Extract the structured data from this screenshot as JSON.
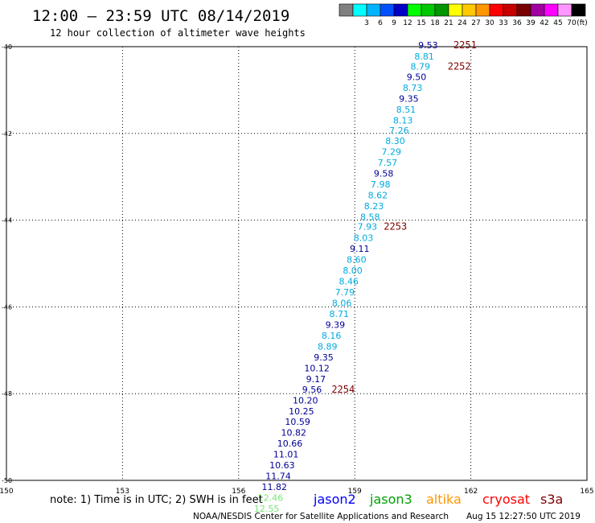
{
  "header": {
    "title": "12:00 – 23:59 UTC 08/14/2019",
    "subtitle": "12 hour collection of altimeter wave heights"
  },
  "colorbar": {
    "unit": "(ft)",
    "swatches": [
      {
        "color": "#808080",
        "label": ""
      },
      {
        "color": "#00ffff",
        "label": "3"
      },
      {
        "color": "#00b4ff",
        "label": "6"
      },
      {
        "color": "#0050ff",
        "label": "9"
      },
      {
        "color": "#0000c8",
        "label": "12"
      },
      {
        "color": "#00ff00",
        "label": "15"
      },
      {
        "color": "#00c800",
        "label": "18"
      },
      {
        "color": "#009600",
        "label": "21"
      },
      {
        "color": "#ffff00",
        "label": "24"
      },
      {
        "color": "#ffc800",
        "label": "27"
      },
      {
        "color": "#ff9600",
        "label": "30"
      },
      {
        "color": "#ff0000",
        "label": "33"
      },
      {
        "color": "#c80000",
        "label": "36"
      },
      {
        "color": "#780000",
        "label": "39"
      },
      {
        "color": "#a000a0",
        "label": "42"
      },
      {
        "color": "#ff00ff",
        "label": "45"
      },
      {
        "color": "#ff96ff",
        "label": "70"
      },
      {
        "color": "#000000",
        "label": ""
      }
    ]
  },
  "footer": {
    "note": "note: 1) Time is in UTC; 2) SWH is in feet",
    "credit": "NOAA/NESDIS Center for Satellite Applications and Research",
    "timestamp": "Aug 15 12:27:50 UTC 2019",
    "satellites": [
      {
        "name": "jason2",
        "color": "#0000ff"
      },
      {
        "name": "jason3",
        "color": "#00a000"
      },
      {
        "name": "altika",
        "color": "#ff9600"
      },
      {
        "name": "cryosat",
        "color": "#ff0000"
      },
      {
        "name": "s3a",
        "color": "#800000"
      }
    ]
  },
  "colors": {
    "dark_blue": "#000096",
    "light_blue": "#00aadd",
    "light_green": "#78e678",
    "time_label": "#800000"
  },
  "chart_data": {
    "type": "scatter",
    "xlim": [
      150,
      165
    ],
    "ylim": [
      -50,
      -40
    ],
    "x_ticks": [
      "150",
      "153",
      "156",
      "159",
      "162",
      "165"
    ],
    "y_ticks": [
      "-40",
      "-42",
      "-44",
      "-46",
      "-48",
      "-50"
    ],
    "grid": true,
    "points": [
      {
        "x": 161.15,
        "y": -39.96,
        "label": "9.53",
        "color": "dark_blue"
      },
      {
        "x": 161.05,
        "y": -40.22,
        "label": "8.81",
        "color": "light_blue"
      },
      {
        "x": 160.95,
        "y": -40.45,
        "label": "8.79",
        "color": "light_blue"
      },
      {
        "x": 160.85,
        "y": -40.7,
        "label": "9.50",
        "color": "dark_blue"
      },
      {
        "x": 160.75,
        "y": -40.95,
        "label": "8.73",
        "color": "light_blue"
      },
      {
        "x": 160.65,
        "y": -41.2,
        "label": "9.35",
        "color": "dark_blue"
      },
      {
        "x": 160.58,
        "y": -41.45,
        "label": "8.51",
        "color": "light_blue"
      },
      {
        "x": 160.5,
        "y": -41.7,
        "label": "8.13",
        "color": "light_blue"
      },
      {
        "x": 160.4,
        "y": -41.93,
        "label": "7.26",
        "color": "light_blue"
      },
      {
        "x": 160.3,
        "y": -42.17,
        "label": "8.30",
        "color": "light_blue"
      },
      {
        "x": 160.2,
        "y": -42.42,
        "label": "7.29",
        "color": "light_blue"
      },
      {
        "x": 160.1,
        "y": -42.67,
        "label": "7.57",
        "color": "light_blue"
      },
      {
        "x": 160.0,
        "y": -42.92,
        "label": "9.58",
        "color": "dark_blue"
      },
      {
        "x": 159.92,
        "y": -43.17,
        "label": "7.98",
        "color": "light_blue"
      },
      {
        "x": 159.85,
        "y": -43.42,
        "label": "8.62",
        "color": "light_blue"
      },
      {
        "x": 159.75,
        "y": -43.67,
        "label": "8.23",
        "color": "light_blue"
      },
      {
        "x": 159.65,
        "y": -43.92,
        "label": "8.58",
        "color": "light_blue"
      },
      {
        "x": 159.58,
        "y": -44.15,
        "label": "7.93",
        "color": "light_blue"
      },
      {
        "x": 159.48,
        "y": -44.41,
        "label": "8.03",
        "color": "light_blue"
      },
      {
        "x": 159.38,
        "y": -44.66,
        "label": "9.11",
        "color": "dark_blue"
      },
      {
        "x": 159.3,
        "y": -44.91,
        "label": "8.60",
        "color": "light_blue"
      },
      {
        "x": 159.2,
        "y": -45.16,
        "label": "8.00",
        "color": "light_blue"
      },
      {
        "x": 159.1,
        "y": -45.41,
        "label": "8.46",
        "color": "light_blue"
      },
      {
        "x": 159.0,
        "y": -45.66,
        "label": "7.79",
        "color": "light_blue"
      },
      {
        "x": 158.92,
        "y": -45.91,
        "label": "8.06",
        "color": "light_blue"
      },
      {
        "x": 158.85,
        "y": -46.16,
        "label": "8.71",
        "color": "light_blue"
      },
      {
        "x": 158.75,
        "y": -46.41,
        "label": "9.39",
        "color": "dark_blue"
      },
      {
        "x": 158.65,
        "y": -46.66,
        "label": "8.16",
        "color": "light_blue"
      },
      {
        "x": 158.55,
        "y": -46.91,
        "label": "8.89",
        "color": "light_blue"
      },
      {
        "x": 158.45,
        "y": -47.16,
        "label": "9.35",
        "color": "dark_blue"
      },
      {
        "x": 158.35,
        "y": -47.41,
        "label": "10.12",
        "color": "dark_blue"
      },
      {
        "x": 158.25,
        "y": -47.66,
        "label": "9.17",
        "color": "dark_blue"
      },
      {
        "x": 158.15,
        "y": -47.9,
        "label": "9.56",
        "color": "dark_blue"
      },
      {
        "x": 158.05,
        "y": -48.15,
        "label": "10.20",
        "color": "dark_blue"
      },
      {
        "x": 157.95,
        "y": -48.4,
        "label": "10.25",
        "color": "dark_blue"
      },
      {
        "x": 157.85,
        "y": -48.65,
        "label": "10.59",
        "color": "dark_blue"
      },
      {
        "x": 157.75,
        "y": -48.9,
        "label": "10.82",
        "color": "dark_blue"
      },
      {
        "x": 157.65,
        "y": -49.15,
        "label": "10.66",
        "color": "dark_blue"
      },
      {
        "x": 157.55,
        "y": -49.4,
        "label": "11.01",
        "color": "dark_blue"
      },
      {
        "x": 157.45,
        "y": -49.65,
        "label": "10.63",
        "color": "dark_blue"
      },
      {
        "x": 157.35,
        "y": -49.9,
        "label": "11.74",
        "color": "dark_blue"
      },
      {
        "x": 157.25,
        "y": -50.15,
        "label": "11.82",
        "color": "dark_blue"
      },
      {
        "x": 157.15,
        "y": -50.4,
        "label": "12.46",
        "color": "light_green"
      },
      {
        "x": 157.05,
        "y": -50.65,
        "label": "12.55",
        "color": "light_green"
      }
    ],
    "time_annotations": [
      {
        "x": 161.55,
        "y": -39.96,
        "label": "2251"
      },
      {
        "x": 161.4,
        "y": -40.45,
        "label": "2252"
      },
      {
        "x": 159.75,
        "y": -44.15,
        "label": "2253"
      },
      {
        "x": 158.4,
        "y": -47.9,
        "label": "2254"
      }
    ]
  }
}
